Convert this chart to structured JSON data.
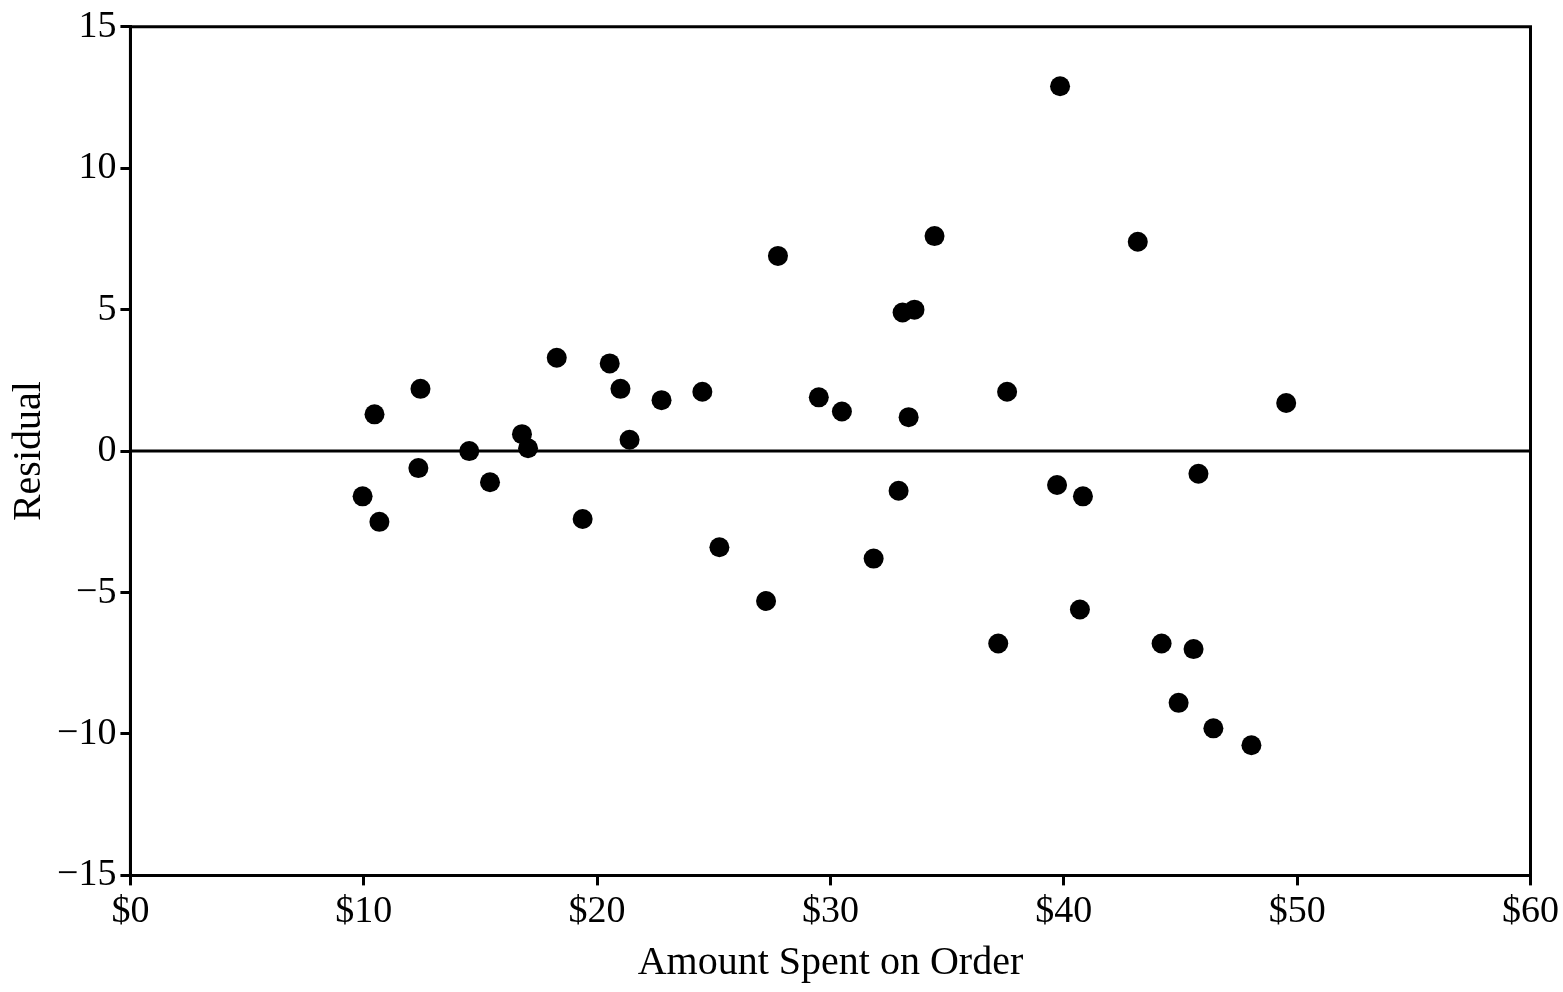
{
  "chart_data": {
    "type": "scatter",
    "xlabel": "Amount Spent on Order",
    "ylabel": "Residual",
    "x": [
      9.95,
      10.46,
      10.67,
      12.43,
      12.34,
      14.52,
      15.41,
      16.78,
      17.04,
      18.27,
      19.38,
      20.54,
      21.0,
      21.39,
      22.76,
      24.51,
      25.24,
      27.24,
      27.75,
      29.5,
      30.49,
      31.85,
      32.92,
      33.09,
      33.6,
      33.35,
      34.46,
      37.19,
      37.57,
      39.71,
      39.84,
      40.69,
      40.82,
      43.17,
      44.19,
      44.92,
      45.56,
      45.77,
      46.41,
      48.04,
      49.53
    ],
    "series": [
      {
        "color": "#000000",
        "values": [
          -1.6,
          1.3,
          -2.5,
          2.2,
          -0.6,
          0,
          -1.1,
          0.6,
          0.1,
          3.3,
          -2.4,
          3.1,
          2.2,
          0.4,
          1.8,
          2.1,
          -3.4,
          -5.3,
          6.9,
          1.9,
          1.4,
          -3.8,
          -1.4,
          4.9,
          5.0,
          1.2,
          7.6,
          -6.8,
          2.1,
          -1.2,
          12.9,
          -5.6,
          -1.6,
          7.4,
          -6.8,
          -8.9,
          -7.0,
          -0.8,
          -9.8,
          -10.4,
          1.7
        ]
      }
    ],
    "xlim": [
      0,
      60
    ],
    "xticks": [
      {
        "value": 0,
        "label": "$0"
      },
      {
        "value": 10,
        "label": "$10"
      },
      {
        "value": 20,
        "label": "$20"
      },
      {
        "value": 30,
        "label": "$30"
      },
      {
        "value": 40,
        "label": "$40"
      },
      {
        "value": 50,
        "label": "$50"
      },
      {
        "value": 60,
        "label": "$60"
      }
    ],
    "ylim": [
      -15,
      15
    ],
    "yticks": [
      {
        "value": -15,
        "label": "−15"
      },
      {
        "value": -10,
        "label": "−10"
      },
      {
        "value": -5,
        "label": "−5"
      },
      0,
      5,
      10,
      15
    ],
    "ref_lines": [
      {
        "axis": "y",
        "value": 0,
        "color": "#000000"
      }
    ],
    "marker": "circle",
    "grid": false,
    "legend": false
  }
}
